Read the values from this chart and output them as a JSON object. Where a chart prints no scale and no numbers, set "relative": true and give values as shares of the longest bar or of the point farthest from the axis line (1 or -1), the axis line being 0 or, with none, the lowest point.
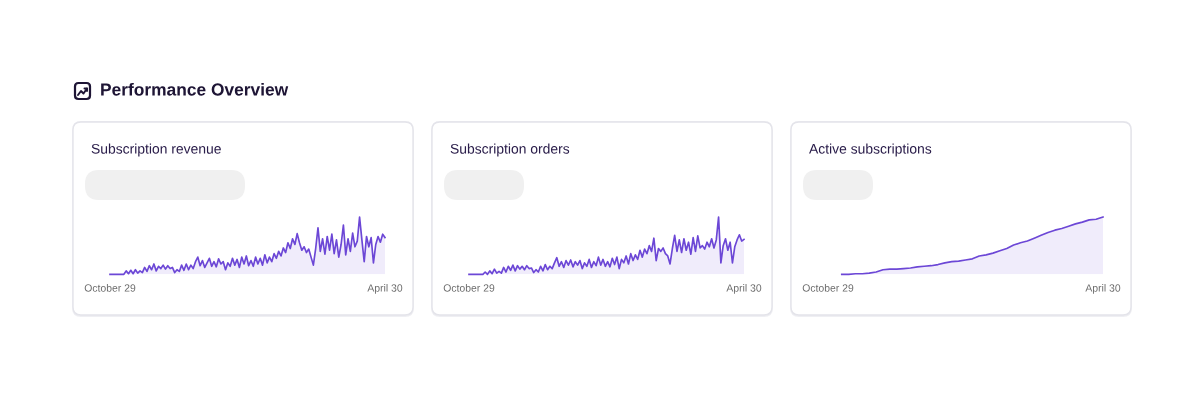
{
  "chart_data": [
    {
      "type": "other",
      "title": "Performance Overview"
    },
    {
      "type": "area",
      "title": "Subscription revenue",
      "relative": true,
      "categories": [
        "October 29",
        null,
        null,
        null,
        null,
        null,
        null,
        null,
        null,
        null,
        null,
        null,
        null,
        null,
        null,
        null,
        null,
        null,
        null,
        null,
        null,
        null,
        null,
        null,
        null,
        null,
        null,
        null,
        null,
        null,
        null,
        null,
        null,
        null,
        null,
        null,
        null,
        null,
        null,
        null,
        null,
        null,
        null,
        null,
        null,
        null,
        null,
        null,
        null,
        null,
        null,
        null,
        null,
        null,
        null,
        null,
        null,
        null,
        null,
        null,
        null,
        null,
        null,
        null,
        null,
        null,
        null,
        null,
        null,
        null,
        null,
        null,
        null,
        null,
        null,
        null,
        null,
        null,
        null,
        null,
        null,
        null,
        null,
        null,
        null,
        null,
        null,
        null,
        null,
        null,
        null,
        null,
        null,
        null,
        null,
        null,
        null,
        null,
        null,
        null,
        null,
        null,
        null,
        null,
        null,
        null,
        null,
        null,
        null,
        null,
        null,
        null,
        null,
        null,
        null,
        null,
        null,
        null,
        null,
        "April 30"
      ],
      "series": [
        {
          "color": "#6c47d6",
          "values": [
            0,
            0,
            0,
            0,
            0,
            0,
            0,
            0.06,
            0.01,
            0.07,
            0.01,
            0.08,
            0.02,
            0.06,
            0.03,
            0.12,
            0.05,
            0.15,
            0.08,
            0.18,
            0.06,
            0.14,
            0.1,
            0.16,
            0.09,
            0.15,
            0.1,
            0.12,
            0.03,
            0.08,
            0.05,
            0.16,
            0.07,
            0.18,
            0.08,
            0.16,
            0.1,
            0.22,
            0.3,
            0.15,
            0.24,
            0.12,
            0.2,
            0.28,
            0.14,
            0.22,
            0.13,
            0.27,
            0.18,
            0.22,
            0.08,
            0.2,
            0.14,
            0.28,
            0.16,
            0.26,
            0.12,
            0.3,
            0.18,
            0.32,
            0.15,
            0.24,
            0.14,
            0.3,
            0.18,
            0.28,
            0.16,
            0.34,
            0.2,
            0.3,
            0.22,
            0.36,
            0.28,
            0.4,
            0.32,
            0.46,
            0.38,
            0.55,
            0.45,
            0.62,
            0.52,
            0.71,
            0.55,
            0.42,
            0.48,
            0.38,
            0.44,
            0.3,
            0.16,
            0.45,
            0.81,
            0.4,
            0.62,
            0.35,
            0.66,
            0.42,
            0.7,
            0.36,
            0.6,
            0.3,
            0.52,
            0.86,
            0.34,
            0.62,
            0.4,
            0.72,
            0.48,
            0.58,
            1,
            0.6,
            0.22,
            0.66,
            0.48,
            0.64,
            0.2,
            0.52,
            0.66,
            0.56,
            0.7,
            0.64
          ]
        }
      ]
    },
    {
      "type": "area",
      "title": "Subscription orders",
      "relative": true,
      "categories": [
        "October 29",
        null,
        null,
        null,
        null,
        null,
        null,
        null,
        null,
        null,
        null,
        null,
        null,
        null,
        null,
        null,
        null,
        null,
        null,
        null,
        null,
        null,
        null,
        null,
        null,
        null,
        null,
        null,
        null,
        null,
        null,
        null,
        null,
        null,
        null,
        null,
        null,
        null,
        null,
        null,
        null,
        null,
        null,
        null,
        null,
        null,
        null,
        null,
        null,
        null,
        null,
        null,
        null,
        null,
        null,
        null,
        null,
        null,
        null,
        null,
        null,
        null,
        null,
        null,
        null,
        null,
        null,
        null,
        null,
        null,
        null,
        null,
        null,
        null,
        null,
        null,
        null,
        null,
        null,
        null,
        null,
        null,
        null,
        null,
        null,
        null,
        null,
        null,
        null,
        null,
        null,
        null,
        null,
        null,
        null,
        null,
        null,
        null,
        null,
        null,
        null,
        null,
        null,
        null,
        null,
        null,
        null,
        null,
        null,
        null,
        null,
        null,
        null,
        null,
        null,
        null,
        null,
        null,
        null,
        "April 30"
      ],
      "series": [
        {
          "color": "#6c47d6",
          "values": [
            0,
            0,
            0,
            0,
            0,
            0,
            0,
            0.04,
            0,
            0.06,
            0.01,
            0.09,
            0.02,
            0.05,
            0.02,
            0.12,
            0.04,
            0.14,
            0.07,
            0.16,
            0.06,
            0.15,
            0.09,
            0.14,
            0.08,
            0.15,
            0.1,
            0.11,
            0.03,
            0.08,
            0.04,
            0.14,
            0.06,
            0.17,
            0.08,
            0.14,
            0.1,
            0.2,
            0.29,
            0.14,
            0.22,
            0.12,
            0.24,
            0.16,
            0.25,
            0.13,
            0.22,
            0.16,
            0.24,
            0.1,
            0.2,
            0.14,
            0.26,
            0.12,
            0.22,
            0.15,
            0.3,
            0.16,
            0.26,
            0.14,
            0.22,
            0.13,
            0.28,
            0.17,
            0.3,
            0.1,
            0.26,
            0.2,
            0.32,
            0.18,
            0.36,
            0.24,
            0.34,
            0.26,
            0.42,
            0.3,
            0.44,
            0.36,
            0.5,
            0.4,
            0.63,
            0.24,
            0.45,
            0.4,
            0.46,
            0.36,
            0.32,
            0.18,
            0.45,
            0.68,
            0.4,
            0.6,
            0.38,
            0.62,
            0.42,
            0.56,
            0.35,
            0.64,
            0.4,
            0.67,
            0.46,
            0.5,
            0.44,
            0.56,
            0.48,
            0.62,
            0.46,
            0.6,
            1,
            0.2,
            0.5,
            0.62,
            0.42,
            0.56,
            0.2,
            0.48,
            0.6,
            0.69,
            0.58,
            0.61
          ]
        }
      ]
    },
    {
      "type": "area",
      "title": "Active subscriptions",
      "relative": true,
      "categories": [
        "October 29",
        null,
        null,
        null,
        null,
        null,
        null,
        null,
        null,
        null,
        null,
        null,
        null,
        null,
        null,
        null,
        null,
        null,
        null,
        null,
        null,
        null,
        null,
        null,
        null,
        null,
        null,
        null,
        null,
        null,
        null,
        null,
        null,
        null,
        null,
        null,
        null,
        null,
        null,
        null,
        "April 30"
      ],
      "series": [
        {
          "color": "#6c47d6",
          "values": [
            null,
            null,
            0,
            0,
            0.01,
            0.01,
            0.02,
            0.04,
            0.08,
            0.09,
            0.09,
            0.1,
            0.11,
            0.13,
            0.14,
            0.15,
            0.17,
            0.2,
            0.22,
            0.23,
            0.25,
            0.27,
            0.32,
            0.34,
            0.37,
            0.41,
            0.45,
            0.51,
            0.55,
            0.58,
            0.63,
            0.68,
            0.73,
            0.77,
            0.8,
            0.84,
            0.88,
            0.91,
            0.95,
            0.96,
            1
          ]
        }
      ]
    }
  ]
}
